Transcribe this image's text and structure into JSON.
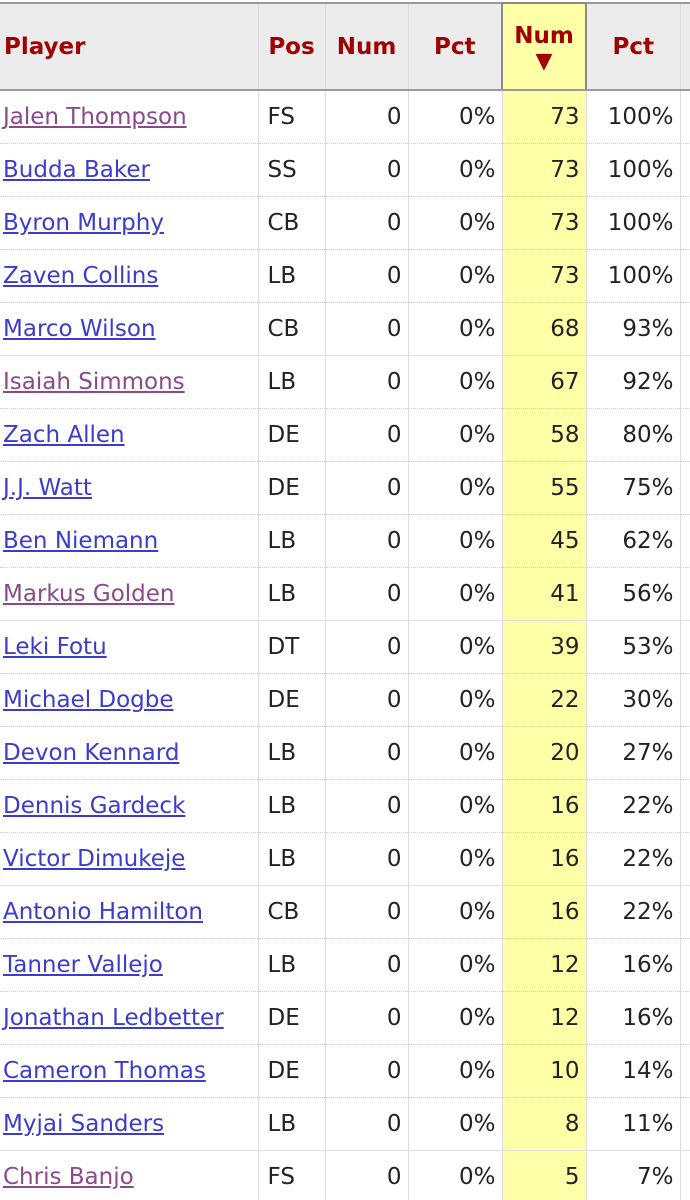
{
  "table": {
    "columns": [
      {
        "key": "player",
        "label": "Player"
      },
      {
        "key": "pos",
        "label": "Pos"
      },
      {
        "key": "num1",
        "label": "Num"
      },
      {
        "key": "pct1",
        "label": "Pct"
      },
      {
        "key": "num2",
        "label": "Num",
        "sorted": true,
        "sort_direction": "descending",
        "sort_glyph": "▼"
      },
      {
        "key": "pct2",
        "label": "Pct"
      }
    ],
    "colors": {
      "header_text": "#a00000",
      "header_bg": "#ececec",
      "sorted_col_bg": "#ffffa8",
      "link": "#3c3ccc",
      "link_visited": "#8a4a8a"
    },
    "rows": [
      {
        "player": "Jalen Thompson",
        "visited": true,
        "pos": "FS",
        "num1": "0",
        "pct1": "0%",
        "num2": "73",
        "pct2": "100%"
      },
      {
        "player": "Budda Baker",
        "visited": false,
        "pos": "SS",
        "num1": "0",
        "pct1": "0%",
        "num2": "73",
        "pct2": "100%"
      },
      {
        "player": "Byron Murphy",
        "visited": false,
        "pos": "CB",
        "num1": "0",
        "pct1": "0%",
        "num2": "73",
        "pct2": "100%"
      },
      {
        "player": "Zaven Collins",
        "visited": false,
        "pos": "LB",
        "num1": "0",
        "pct1": "0%",
        "num2": "73",
        "pct2": "100%"
      },
      {
        "player": "Marco Wilson",
        "visited": false,
        "pos": "CB",
        "num1": "0",
        "pct1": "0%",
        "num2": "68",
        "pct2": "93%"
      },
      {
        "player": "Isaiah Simmons",
        "visited": true,
        "pos": "LB",
        "num1": "0",
        "pct1": "0%",
        "num2": "67",
        "pct2": "92%"
      },
      {
        "player": "Zach Allen",
        "visited": false,
        "pos": "DE",
        "num1": "0",
        "pct1": "0%",
        "num2": "58",
        "pct2": "80%"
      },
      {
        "player": "J.J. Watt",
        "visited": false,
        "pos": "DE",
        "num1": "0",
        "pct1": "0%",
        "num2": "55",
        "pct2": "75%"
      },
      {
        "player": "Ben Niemann",
        "visited": false,
        "pos": "LB",
        "num1": "0",
        "pct1": "0%",
        "num2": "45",
        "pct2": "62%"
      },
      {
        "player": "Markus Golden",
        "visited": true,
        "pos": "LB",
        "num1": "0",
        "pct1": "0%",
        "num2": "41",
        "pct2": "56%"
      },
      {
        "player": "Leki Fotu",
        "visited": false,
        "pos": "DT",
        "num1": "0",
        "pct1": "0%",
        "num2": "39",
        "pct2": "53%"
      },
      {
        "player": "Michael Dogbe",
        "visited": false,
        "pos": "DE",
        "num1": "0",
        "pct1": "0%",
        "num2": "22",
        "pct2": "30%"
      },
      {
        "player": "Devon Kennard",
        "visited": false,
        "pos": "LB",
        "num1": "0",
        "pct1": "0%",
        "num2": "20",
        "pct2": "27%"
      },
      {
        "player": "Dennis Gardeck",
        "visited": false,
        "pos": "LB",
        "num1": "0",
        "pct1": "0%",
        "num2": "16",
        "pct2": "22%"
      },
      {
        "player": "Victor Dimukeje",
        "visited": false,
        "pos": "LB",
        "num1": "0",
        "pct1": "0%",
        "num2": "16",
        "pct2": "22%"
      },
      {
        "player": "Antonio Hamilton",
        "visited": false,
        "pos": "CB",
        "num1": "0",
        "pct1": "0%",
        "num2": "16",
        "pct2": "22%"
      },
      {
        "player": "Tanner Vallejo",
        "visited": false,
        "pos": "LB",
        "num1": "0",
        "pct1": "0%",
        "num2": "12",
        "pct2": "16%"
      },
      {
        "player": "Jonathan Ledbetter",
        "visited": false,
        "pos": "DE",
        "num1": "0",
        "pct1": "0%",
        "num2": "12",
        "pct2": "16%"
      },
      {
        "player": "Cameron Thomas",
        "visited": false,
        "pos": "DE",
        "num1": "0",
        "pct1": "0%",
        "num2": "10",
        "pct2": "14%"
      },
      {
        "player": "Myjai Sanders",
        "visited": false,
        "pos": "LB",
        "num1": "0",
        "pct1": "0%",
        "num2": "8",
        "pct2": "11%"
      },
      {
        "player": "Chris Banjo",
        "visited": true,
        "pos": "FS",
        "num1": "0",
        "pct1": "0%",
        "num2": "5",
        "pct2": "7%"
      }
    ]
  }
}
